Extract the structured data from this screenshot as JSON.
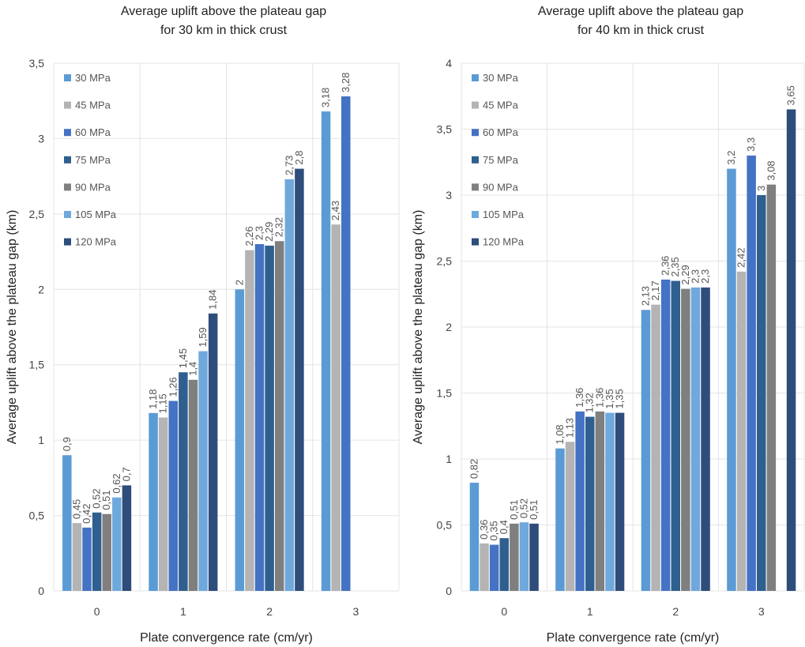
{
  "chart_data": [
    {
      "type": "bar",
      "title": "Average uplift above the plateau gap",
      "subtitle": "for 30 km in thick crust",
      "xlabel": "Plate convergence rate (cm/yr)",
      "ylabel": "Average uplift above the plateau gap (km)",
      "categories": [
        "0",
        "1",
        "2",
        "3"
      ],
      "ylim": [
        0,
        3.5
      ],
      "yticks": [
        "0",
        "0,5",
        "1",
        "1,5",
        "2",
        "2,5",
        "3",
        "3,5"
      ],
      "ytick_values": [
        0,
        0.5,
        1,
        1.5,
        2,
        2.5,
        3,
        3.5
      ],
      "grid": true,
      "legend_position": "top-left",
      "series": [
        {
          "name": "30 MPa",
          "color": "#5B9BD5",
          "values": [
            0.9,
            1.18,
            2,
            3.18
          ],
          "labels": [
            "0,9",
            "1,18",
            "2",
            "3,18"
          ]
        },
        {
          "name": "45 MPa",
          "color": "#B4B4B4",
          "values": [
            0.45,
            1.15,
            2.26,
            2.43
          ],
          "labels": [
            "0,45",
            "1,15",
            "2,26",
            "2,43"
          ]
        },
        {
          "name": "60 MPa",
          "color": "#4472C4",
          "values": [
            0.42,
            1.26,
            2.3,
            3.28
          ],
          "labels": [
            "0,42",
            "1,26",
            "2,3",
            "3,28"
          ]
        },
        {
          "name": "75 MPa",
          "color": "#2F5F8F",
          "values": [
            0.52,
            1.45,
            2.29,
            null
          ],
          "labels": [
            "0,52",
            "1,45",
            "2,29",
            ""
          ]
        },
        {
          "name": "90 MPa",
          "color": "#7F7F7F",
          "values": [
            0.51,
            1.4,
            2.32,
            null
          ],
          "labels": [
            "0,51",
            "1,4",
            "2,32",
            ""
          ]
        },
        {
          "name": "105 MPa",
          "color": "#6FA8DC",
          "values": [
            0.62,
            1.59,
            2.73,
            null
          ],
          "labels": [
            "0,62",
            "1,59",
            "2,73",
            ""
          ]
        },
        {
          "name": "120 MPa",
          "color": "#2E4D7B",
          "values": [
            0.7,
            1.84,
            2.8,
            null
          ],
          "labels": [
            "0,7",
            "1,84",
            "2,8",
            ""
          ]
        }
      ]
    },
    {
      "type": "bar",
      "title": "Average uplift above the plateau gap",
      "subtitle": "for 40 km in thick crust",
      "xlabel": "Plate convergence rate (cm/yr)",
      "ylabel": "Average uplift above the plateau gap (km)",
      "categories": [
        "0",
        "1",
        "2",
        "3"
      ],
      "ylim": [
        0,
        4
      ],
      "yticks": [
        "0",
        "0,5",
        "1",
        "1,5",
        "2",
        "2,5",
        "3",
        "3,5",
        "4"
      ],
      "ytick_values": [
        0,
        0.5,
        1,
        1.5,
        2,
        2.5,
        3,
        3.5,
        4
      ],
      "grid": true,
      "legend_position": "top-left",
      "series": [
        {
          "name": "30 MPa",
          "color": "#5B9BD5",
          "values": [
            0.82,
            1.08,
            2.13,
            3.2
          ],
          "labels": [
            "0,82",
            "1,08",
            "2,13",
            "3,2"
          ]
        },
        {
          "name": "45 MPa",
          "color": "#B4B4B4",
          "values": [
            0.36,
            1.13,
            2.17,
            2.42
          ],
          "labels": [
            "0,36",
            "1,13",
            "2,17",
            "2,42"
          ]
        },
        {
          "name": "60 MPa",
          "color": "#4472C4",
          "values": [
            0.35,
            1.36,
            2.36,
            3.3
          ],
          "labels": [
            "0,35",
            "1,36",
            "2,36",
            "3,3"
          ]
        },
        {
          "name": "75 MPa",
          "color": "#2F5F8F",
          "values": [
            0.4,
            1.32,
            2.35,
            3
          ],
          "labels": [
            "0,4",
            "1,32",
            "2,35",
            "3"
          ]
        },
        {
          "name": "90 MPa",
          "color": "#7F7F7F",
          "values": [
            0.51,
            1.36,
            2.29,
            3.08
          ],
          "labels": [
            "0,51",
            "1,36",
            "2,29",
            "3,08"
          ]
        },
        {
          "name": "105 MPa",
          "color": "#6FA8DC",
          "values": [
            0.52,
            1.35,
            2.3,
            null
          ],
          "labels": [
            "0,52",
            "1,35",
            "2,3",
            ""
          ]
        },
        {
          "name": "120 MPa",
          "color": "#2E4D7B",
          "values": [
            0.51,
            1.35,
            2.3,
            3.65
          ],
          "labels": [
            "0,51",
            "1,35",
            "2,3",
            "3,65"
          ]
        }
      ]
    }
  ]
}
